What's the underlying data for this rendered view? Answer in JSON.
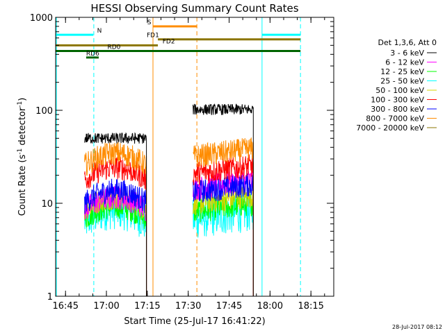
{
  "chart_data": {
    "type": "line",
    "title": "HESSI Observing Summary Count Rates",
    "xlabel": "Start Time (25-Jul-17 16:41:22)",
    "ylabel_main": "Count Rate (s",
    "ylabel_sup1": "-1",
    "ylabel_mid": " detector",
    "ylabel_sup2": "-1",
    "ylabel_end": ")",
    "footer": "28-Jul-2017 08:12",
    "y_scale": "log",
    "ylim": [
      1,
      1000
    ],
    "xlim_minutes": [
      0,
      102
    ],
    "x_ticks": [
      {
        "label": "16:45",
        "min": 3.63
      },
      {
        "label": "17:00",
        "min": 18.63
      },
      {
        "label": "17:15",
        "min": 33.63
      },
      {
        "label": "17:30",
        "min": 48.63
      },
      {
        "label": "17:45",
        "min": 63.63
      },
      {
        "label": "18:00",
        "min": 78.63
      },
      {
        "label": "18:15",
        "min": 93.63
      }
    ],
    "y_ticks": [
      {
        "label": "1",
        "value": 1
      },
      {
        "label": "10",
        "value": 10
      },
      {
        "label": "100",
        "value": 100
      },
      {
        "label": "1000",
        "value": 1000
      }
    ],
    "legend_title": "Det 1,3,6, Att 0",
    "legend_position": "right",
    "series": [
      {
        "name": "3 - 6 keV",
        "color": "#000000",
        "seg1": 50,
        "seg2": 102
      },
      {
        "name": "6 - 12 keV",
        "color": "#ff00ff",
        "seg1": 10,
        "seg2": 16
      },
      {
        "name": "12 - 25 keV",
        "color": "#00ff00",
        "seg1": 8,
        "seg2": 9
      },
      {
        "name": "25 - 50 keV",
        "color": "#00ffff",
        "seg1": 7.5,
        "seg2": 7.5
      },
      {
        "name": "50 - 100 keV",
        "color": "#d4d400",
        "seg1": 10,
        "seg2": 11
      },
      {
        "name": "100 - 300 keV",
        "color": "#ff0000",
        "seg1": 21,
        "seg2": 23
      },
      {
        "name": "300 - 800 keV",
        "color": "#0000ff",
        "seg1": 12,
        "seg2": 14.5
      },
      {
        "name": "800 - 7000 keV",
        "color": "#ff8c00",
        "seg1": 30,
        "seg2": 35
      },
      {
        "name": "7000 - 20000 keV",
        "color": "#8b7500",
        "seg1": 0,
        "seg2": 0
      }
    ],
    "segments_minutes": [
      [
        10.6,
        33.3
      ],
      [
        50.4,
        72.5
      ]
    ],
    "flag_bars": [
      {
        "label": "N",
        "color": "#00ffff",
        "value": 650,
        "ranges": [
          [
            0,
            13.8
          ],
          [
            75.7,
            89.8
          ]
        ],
        "label_min": 15.2
      },
      {
        "label": "S",
        "color": "#ff8c00",
        "value": 800,
        "ranges": [
          [
            35.7,
            51.8
          ]
        ],
        "label_min": 33.6
      },
      {
        "label": "FD1",
        "color": "#8b7500",
        "value": 580,
        "ranges": [
          [
            37.5,
            89.8
          ]
        ],
        "label_min": 33.4
      },
      {
        "label": "FD2",
        "color": "#8b7500",
        "value": 500,
        "ranges": [
          [
            0,
            37.5
          ]
        ],
        "label_min": 39.2
      },
      {
        "label": "RD0",
        "color": "#006400",
        "value": 435,
        "ranges": [
          [
            0,
            89.8
          ]
        ],
        "label_min": 19.0
      },
      {
        "label": "RD6",
        "color": "#006400",
        "value": 370,
        "ranges": [
          [
            11.2,
            15.8
          ]
        ],
        "label_min": 11.2
      }
    ],
    "vertical_markers": [
      {
        "min": 0.3,
        "color": "#00ffff",
        "style": "solid"
      },
      {
        "min": 14.0,
        "color": "#00ffff",
        "style": "dashed"
      },
      {
        "min": 35.7,
        "color": "#ff8c00",
        "style": "solid"
      },
      {
        "min": 51.8,
        "color": "#ff8c00",
        "style": "dashed"
      },
      {
        "min": 75.7,
        "color": "#00ffff",
        "style": "solid"
      },
      {
        "min": 89.8,
        "color": "#00ffff",
        "style": "dashed"
      }
    ]
  }
}
